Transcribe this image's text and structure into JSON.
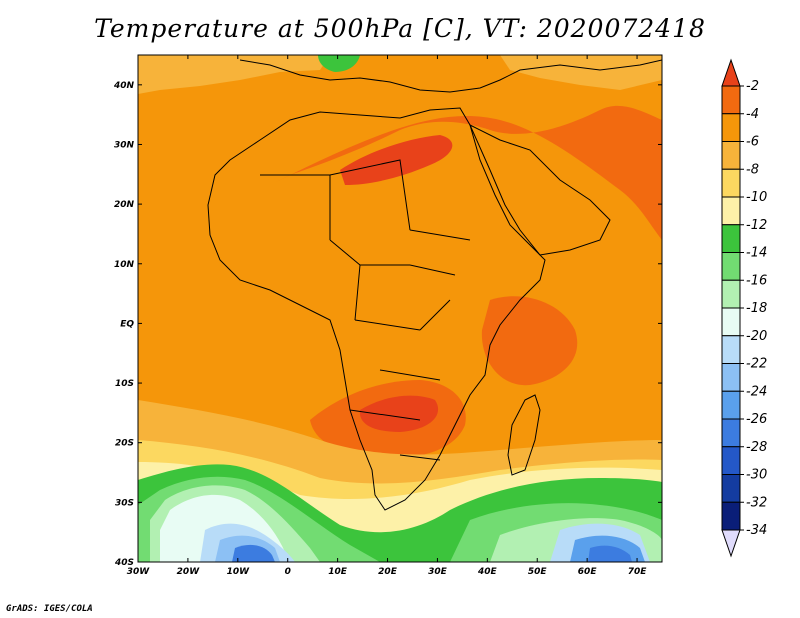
{
  "title": "Temperature at 500hPa [C], VT: 2020072418",
  "footer": "GrADS: IGES/COLA",
  "map": {
    "lon_labels": [
      "30W",
      "20W",
      "10W",
      "0",
      "10E",
      "20E",
      "30E",
      "40E",
      "50E",
      "60E",
      "70E"
    ],
    "lat_labels": [
      "40N",
      "30N",
      "20N",
      "10N",
      "EQ",
      "10S",
      "20S",
      "30S",
      "40S"
    ],
    "lon_range": [
      -30,
      75
    ],
    "lat_range": [
      -40,
      45
    ]
  },
  "colorbar": {
    "labels": [
      "-2",
      "-4",
      "-6",
      "-8",
      "-10",
      "-12",
      "-14",
      "-16",
      "-18",
      "-20",
      "-22",
      "-24",
      "-26",
      "-28",
      "-30",
      "-32",
      "-34"
    ],
    "colors": [
      "#e8421a",
      "#f26a10",
      "#f5960a",
      "#f7b33a",
      "#fcd860",
      "#fdf1a8",
      "#3cc43c",
      "#72dc72",
      "#b2f0b2",
      "#e8fcf4",
      "#b8dcf8",
      "#8cc0f4",
      "#5aa0ec",
      "#3c7ce0",
      "#2458c8",
      "#143ca0",
      "#0a1e78",
      "#e0dcfc"
    ]
  }
}
